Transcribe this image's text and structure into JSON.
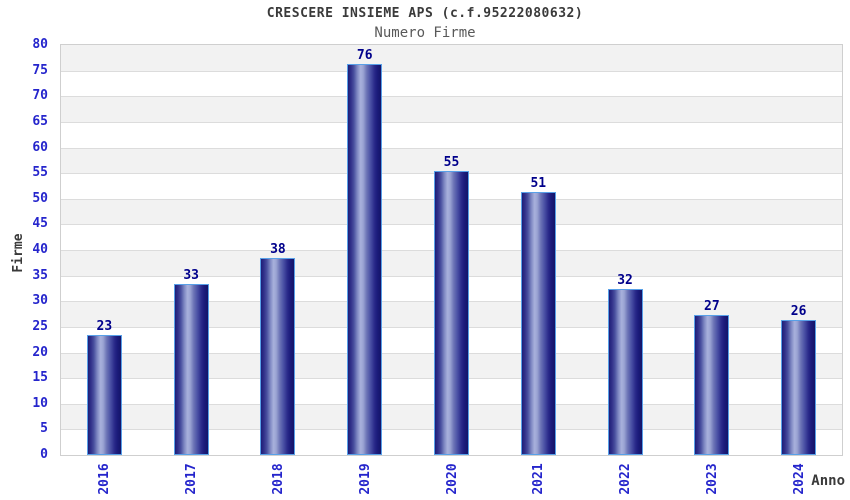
{
  "header": {
    "title": "CRESCERE INSIEME APS (c.f.95222080632)",
    "subtitle": "Numero Firme"
  },
  "colors": {
    "tick_label_blue": "#2525cc",
    "value_label_navy": "#00008b",
    "bar_dark_navy": "#1d1d78",
    "bar_highlight": "#a8b1dc",
    "bar_border_blue": "#58a0e8",
    "band_gray": "#f2f2f2",
    "band_white": "#ffffff",
    "gridline_gray": "#dcdcdc",
    "plot_border_gray": "#cfcfcf",
    "title_dark": "#3a3a3a",
    "subtitle_gray": "#595959",
    "background": "#ffffff"
  },
  "chart_data": {
    "type": "bar",
    "title": "CRESCERE INSIEME APS (c.f.95222080632)",
    "subtitle": "Numero Firme",
    "categories": [
      "2016",
      "2017",
      "2018",
      "2019",
      "2020",
      "2021",
      "2022",
      "2023",
      "2024"
    ],
    "values": [
      23,
      33,
      38,
      76,
      55,
      51,
      32,
      27,
      26
    ],
    "xlabel": "Anno",
    "ylabel": "Firme",
    "ylim": [
      0,
      80
    ],
    "ytick_step": 5,
    "grid": true,
    "banded_background": true,
    "legend": false,
    "bar_labels_shown": true,
    "x_tick_rotation_deg": 90
  }
}
